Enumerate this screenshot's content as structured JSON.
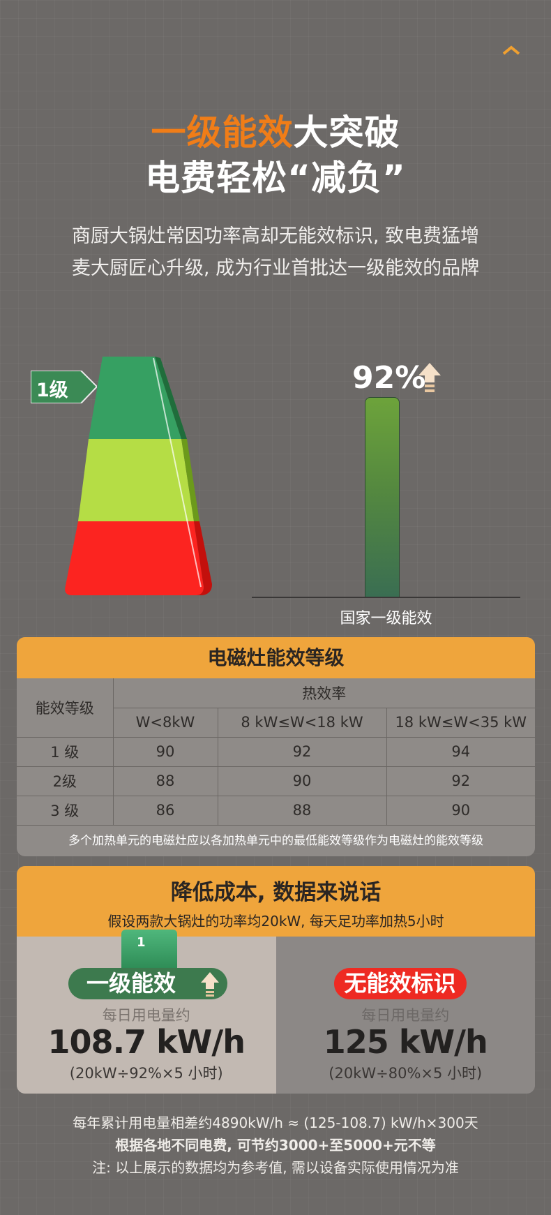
{
  "header": {
    "title_highlight": "一级能效",
    "title_rest": "大突破",
    "title_line2": "电费轻松“减负”",
    "subtitle_lines": [
      "商厨大锅灶常因功率高却无能效标识, 致电费猛增",
      "麦大厨匠心升级, 成为行业首批达一级能效的品牌"
    ]
  },
  "graphic": {
    "grade_tag": "1级",
    "efficiency_percent": "92%",
    "bar_label": "国家一级能效",
    "pyramid_colors": [
      "#36a062",
      "#b5dd45",
      "#fc2420"
    ]
  },
  "table_card": {
    "title": "电磁灶能效等级",
    "grade_header": "能效等级",
    "efficiency_header": "热效率",
    "power_columns": [
      "W<8kW",
      "8 kW≤W<18 kW",
      "18 kW≤W<35 kW"
    ],
    "rows": [
      {
        "grade": "1 级",
        "values": [
          "90",
          "92",
          "94"
        ]
      },
      {
        "grade": "2级",
        "values": [
          "88",
          "90",
          "92"
        ]
      },
      {
        "grade": "3 级",
        "values": [
          "86",
          "88",
          "90"
        ]
      }
    ],
    "note": "多个加热单元的电磁灶应以各加热单元中的最低能效等级作为电磁灶的能效等级"
  },
  "cost_card": {
    "title": "降低成本, 数据来说话",
    "subtitle": "假设两款大锅灶的功率均20kW, 每天足功率加热5小时",
    "left": {
      "badge": "一级能效",
      "cube_label": "1",
      "daily_label": "每日用电量约",
      "value": "108.7 kW/h",
      "formula": "(20kW÷92%×5 小时)"
    },
    "right": {
      "badge": "无能效标识",
      "daily_label": "每日用电量约",
      "value": "125 kW/h",
      "formula": "(20kW÷80%×5 小时)"
    }
  },
  "footer": {
    "line1": "每年累计用电量相差约4890kW/h ≈ (125-108.7) kW/h×300天",
    "line2": "根据各地不同电费, 可节约3000+至5000+元不等",
    "line3": "注: 以上展示的数据均为参考值, 需以设备实际使用情况为准"
  }
}
